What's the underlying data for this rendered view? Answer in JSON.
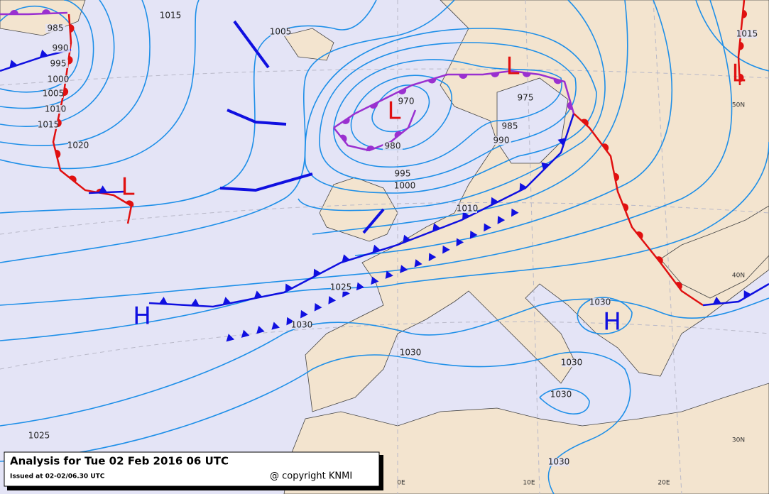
{
  "title_box": {
    "title": "Analysis for Tue 02 Feb 2016 06 UTC",
    "issued": "Issued at 02-02/06.30 UTC",
    "copyright": "@ copyright KNMI"
  },
  "pressure_centers": [
    "H",
    "H",
    "L",
    "L",
    "L",
    "L"
  ],
  "isobar_labels": [
    "985",
    "990",
    "995",
    "1000",
    "1005",
    "1010",
    "1015",
    "1020",
    "1005",
    "1015",
    "970",
    "980",
    "995",
    "1000",
    "985",
    "990",
    "975",
    "1010",
    "1025",
    "1030",
    "1030",
    "1030",
    "1030",
    "1030",
    "1030",
    "1025",
    "1015"
  ],
  "graticule_labels": [
    "50N",
    "40N",
    "30N",
    "0E",
    "10E",
    "20E"
  ]
}
